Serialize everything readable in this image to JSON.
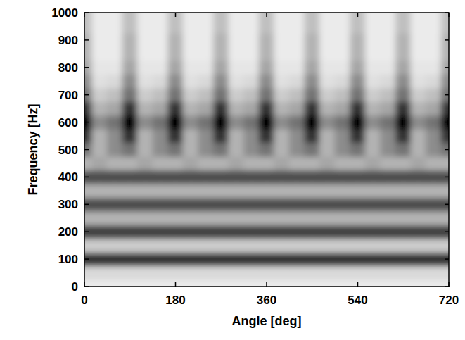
{
  "chart_data": {
    "type": "heatmap",
    "x_label": "Angle [deg]",
    "y_label": "Frequency [Hz]",
    "xlim": [
      0,
      720
    ],
    "ylim": [
      0,
      1000
    ],
    "xticks": [
      0,
      180,
      360,
      540,
      720
    ],
    "yticks": [
      0,
      100,
      200,
      300,
      400,
      500,
      600,
      700,
      800,
      900,
      1000
    ],
    "grid": false,
    "x": [
      0,
      30,
      60,
      90,
      120,
      150,
      180,
      210,
      240,
      270,
      300,
      330,
      360,
      390,
      420,
      450,
      480,
      510,
      540,
      570,
      600,
      630,
      660,
      690,
      720
    ],
    "y": [
      0,
      50,
      100,
      150,
      200,
      250,
      300,
      350,
      400,
      450,
      500,
      550,
      600,
      650,
      700,
      750,
      800,
      850,
      900,
      950,
      1000
    ],
    "z": [
      [
        0.08,
        0.08,
        0.08,
        0.08,
        0.08,
        0.08,
        0.08,
        0.08,
        0.08,
        0.08,
        0.08,
        0.08,
        0.08,
        0.08,
        0.08,
        0.08,
        0.08,
        0.08,
        0.08,
        0.08,
        0.08,
        0.08,
        0.08,
        0.08,
        0.08
      ],
      [
        0.15,
        0.15,
        0.15,
        0.15,
        0.15,
        0.15,
        0.15,
        0.15,
        0.15,
        0.15,
        0.15,
        0.15,
        0.15,
        0.15,
        0.15,
        0.15,
        0.15,
        0.15,
        0.15,
        0.15,
        0.15,
        0.15,
        0.15,
        0.15,
        0.15
      ],
      [
        0.8,
        0.8,
        0.8,
        0.8,
        0.8,
        0.8,
        0.8,
        0.8,
        0.8,
        0.8,
        0.8,
        0.8,
        0.8,
        0.8,
        0.8,
        0.8,
        0.8,
        0.8,
        0.8,
        0.8,
        0.8,
        0.8,
        0.8,
        0.8,
        0.8
      ],
      [
        0.2,
        0.2,
        0.2,
        0.2,
        0.2,
        0.2,
        0.2,
        0.2,
        0.2,
        0.2,
        0.2,
        0.2,
        0.2,
        0.2,
        0.2,
        0.2,
        0.2,
        0.2,
        0.2,
        0.2,
        0.2,
        0.2,
        0.2,
        0.2,
        0.2
      ],
      [
        0.75,
        0.75,
        0.75,
        0.75,
        0.75,
        0.75,
        0.75,
        0.75,
        0.75,
        0.75,
        0.75,
        0.75,
        0.75,
        0.75,
        0.75,
        0.75,
        0.75,
        0.75,
        0.75,
        0.75,
        0.75,
        0.75,
        0.75,
        0.75,
        0.75
      ],
      [
        0.3,
        0.3,
        0.3,
        0.3,
        0.3,
        0.3,
        0.3,
        0.3,
        0.3,
        0.3,
        0.3,
        0.3,
        0.3,
        0.3,
        0.3,
        0.3,
        0.3,
        0.3,
        0.3,
        0.3,
        0.3,
        0.3,
        0.3,
        0.3,
        0.3
      ],
      [
        0.7,
        0.7,
        0.7,
        0.7,
        0.7,
        0.7,
        0.7,
        0.7,
        0.7,
        0.7,
        0.7,
        0.7,
        0.7,
        0.7,
        0.7,
        0.7,
        0.7,
        0.7,
        0.7,
        0.7,
        0.7,
        0.7,
        0.7,
        0.7,
        0.7
      ],
      [
        0.3,
        0.3,
        0.3,
        0.3,
        0.3,
        0.3,
        0.3,
        0.3,
        0.3,
        0.3,
        0.3,
        0.3,
        0.3,
        0.3,
        0.3,
        0.3,
        0.3,
        0.3,
        0.3,
        0.3,
        0.3,
        0.3,
        0.3,
        0.3,
        0.3
      ],
      [
        0.7,
        0.7,
        0.7,
        0.7,
        0.7,
        0.7,
        0.7,
        0.7,
        0.7,
        0.7,
        0.7,
        0.7,
        0.7,
        0.7,
        0.7,
        0.7,
        0.7,
        0.7,
        0.7,
        0.7,
        0.7,
        0.7,
        0.7,
        0.7,
        0.7
      ],
      [
        0.3,
        0.35,
        0.3,
        0.3,
        0.35,
        0.3,
        0.3,
        0.35,
        0.3,
        0.3,
        0.35,
        0.3,
        0.3,
        0.35,
        0.3,
        0.3,
        0.35,
        0.3,
        0.3,
        0.35,
        0.3,
        0.3,
        0.35,
        0.3,
        0.3
      ],
      [
        0.55,
        0.3,
        0.45,
        0.55,
        0.3,
        0.45,
        0.55,
        0.3,
        0.45,
        0.55,
        0.3,
        0.45,
        0.55,
        0.3,
        0.45,
        0.55,
        0.3,
        0.45,
        0.55,
        0.3,
        0.45,
        0.55,
        0.3,
        0.45,
        0.55
      ],
      [
        0.8,
        0.3,
        0.45,
        0.8,
        0.3,
        0.45,
        0.8,
        0.3,
        0.45,
        0.8,
        0.3,
        0.45,
        0.8,
        0.3,
        0.45,
        0.8,
        0.3,
        0.45,
        0.8,
        0.3,
        0.45,
        0.8,
        0.3,
        0.45,
        0.8
      ],
      [
        1,
        0.45,
        0.55,
        1,
        0.45,
        0.55,
        1,
        0.45,
        0.55,
        1,
        0.45,
        0.55,
        1,
        0.45,
        0.55,
        1,
        0.45,
        0.55,
        1,
        0.45,
        0.55,
        1,
        0.45,
        0.55,
        1
      ],
      [
        0.8,
        0.3,
        0.35,
        0.8,
        0.3,
        0.35,
        0.8,
        0.3,
        0.35,
        0.8,
        0.3,
        0.35,
        0.8,
        0.3,
        0.35,
        0.8,
        0.3,
        0.35,
        0.8,
        0.3,
        0.35,
        0.8,
        0.3,
        0.35,
        0.8
      ],
      [
        0.55,
        0.2,
        0.25,
        0.55,
        0.2,
        0.25,
        0.55,
        0.2,
        0.25,
        0.55,
        0.2,
        0.25,
        0.55,
        0.2,
        0.25,
        0.55,
        0.2,
        0.25,
        0.55,
        0.2,
        0.25,
        0.55,
        0.2,
        0.25,
        0.55
      ],
      [
        0.45,
        0.12,
        0.15,
        0.45,
        0.12,
        0.15,
        0.45,
        0.12,
        0.15,
        0.45,
        0.12,
        0.15,
        0.45,
        0.12,
        0.15,
        0.45,
        0.12,
        0.15,
        0.45,
        0.12,
        0.15,
        0.45,
        0.12,
        0.15,
        0.45
      ],
      [
        0.35,
        0.1,
        0.1,
        0.35,
        0.1,
        0.1,
        0.35,
        0.1,
        0.1,
        0.35,
        0.1,
        0.1,
        0.35,
        0.1,
        0.1,
        0.35,
        0.1,
        0.1,
        0.35,
        0.1,
        0.1,
        0.35,
        0.1,
        0.1,
        0.35
      ],
      [
        0.3,
        0.08,
        0.08,
        0.3,
        0.08,
        0.08,
        0.3,
        0.08,
        0.08,
        0.3,
        0.08,
        0.08,
        0.3,
        0.08,
        0.08,
        0.3,
        0.08,
        0.08,
        0.3,
        0.08,
        0.08,
        0.3,
        0.08,
        0.08,
        0.3
      ],
      [
        0.3,
        0.08,
        0.08,
        0.3,
        0.08,
        0.08,
        0.3,
        0.08,
        0.08,
        0.3,
        0.08,
        0.08,
        0.3,
        0.08,
        0.08,
        0.3,
        0.08,
        0.08,
        0.3,
        0.08,
        0.08,
        0.3,
        0.08,
        0.08,
        0.3
      ],
      [
        0.25,
        0.08,
        0.08,
        0.25,
        0.08,
        0.08,
        0.25,
        0.08,
        0.08,
        0.25,
        0.08,
        0.08,
        0.25,
        0.08,
        0.08,
        0.25,
        0.08,
        0.08,
        0.25,
        0.08,
        0.08,
        0.25,
        0.08,
        0.08,
        0.25
      ],
      [
        0.25,
        0.08,
        0.08,
        0.25,
        0.08,
        0.08,
        0.25,
        0.08,
        0.08,
        0.25,
        0.08,
        0.08,
        0.25,
        0.08,
        0.08,
        0.25,
        0.08,
        0.08,
        0.25,
        0.08,
        0.08,
        0.25,
        0.08,
        0.08,
        0.25
      ]
    ]
  }
}
